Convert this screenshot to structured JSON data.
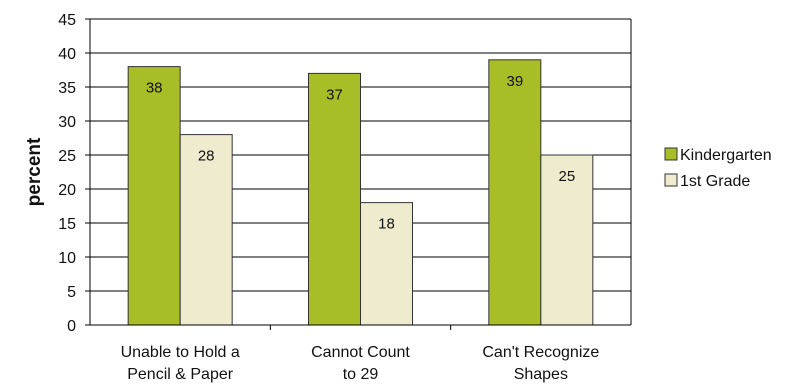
{
  "chart_data": {
    "type": "bar",
    "categories": [
      [
        "Unable to Hold a",
        "Pencil & Paper"
      ],
      [
        "Cannot Count",
        "to 29"
      ],
      [
        "Can't Recognize",
        "Shapes"
      ]
    ],
    "series": [
      {
        "name": "Kindergarten",
        "values": [
          38,
          37,
          39
        ],
        "color": "#a9bd26"
      },
      {
        "name": "1st Grade",
        "values": [
          28,
          18,
          25
        ],
        "color": "#eeebcf"
      }
    ],
    "data_labels": true,
    "ylabel": "percent",
    "ylim": [
      0,
      45
    ],
    "yticks": [
      0,
      5,
      10,
      15,
      20,
      25,
      30,
      35,
      40,
      45
    ],
    "grid": true,
    "legend_position": "right",
    "bar_border_color": "#333333",
    "grid_color": "#000000"
  }
}
